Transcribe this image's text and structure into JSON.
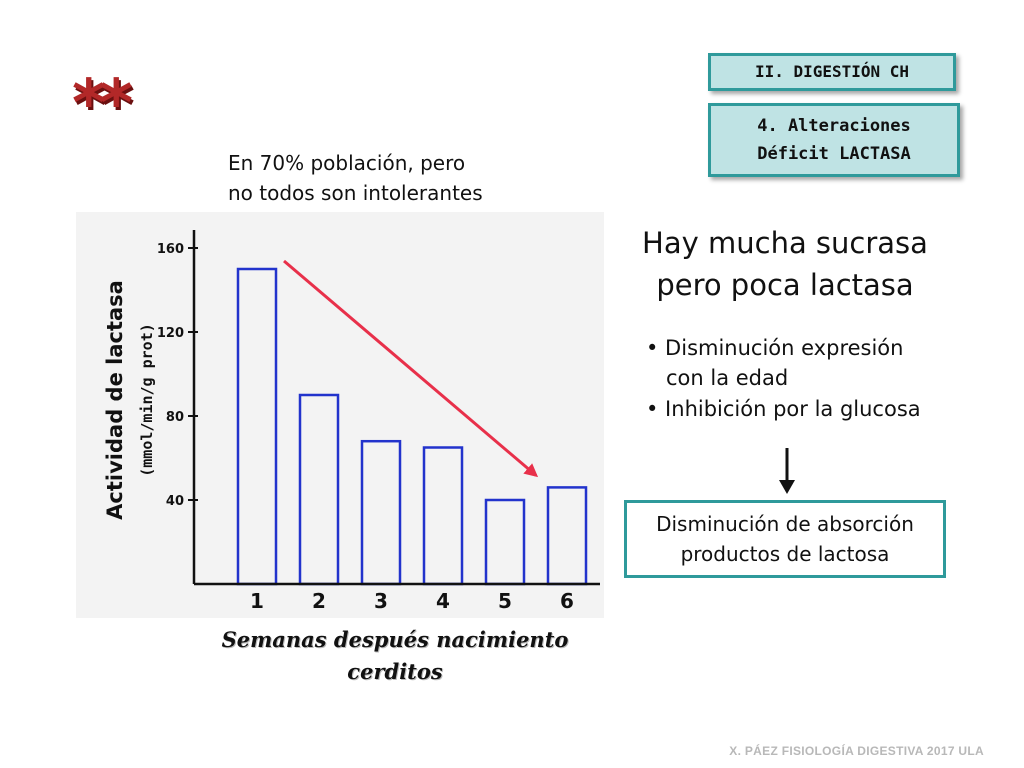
{
  "section_tag": "II. DIGESTIÓN CH",
  "topic_tag": {
    "line1": "4. Alteraciones",
    "line2": "Déficit LACTASA"
  },
  "stars": "**",
  "note": {
    "line1": "En 70% población, pero",
    "line2": "no todos son intolerantes"
  },
  "headline": {
    "line1": "Hay mucha sucrasa",
    "line2": "pero poca lactasa"
  },
  "bullets": [
    {
      "line1": "• Disminución expresión",
      "line2": "con la edad"
    },
    {
      "line1": "• Inhibición por la glucosa"
    }
  ],
  "result": {
    "line1": "Disminución de absorción",
    "line2": "productos de lactosa"
  },
  "footer": "X. PÁEZ   FISIOLOGÍA DIGESTIVA 2017  ULA",
  "colors": {
    "accent_teal": "#2f9a9b",
    "tag_fill": "#bfe3e4",
    "bar_stroke": "#2233cc",
    "trend_arrow": "#e8304a"
  },
  "chart_data": {
    "type": "bar",
    "categories": [
      "1",
      "2",
      "3",
      "4",
      "5",
      "6"
    ],
    "values": [
      150,
      90,
      68,
      65,
      40,
      46
    ],
    "ylabel": "Actividad de lactasa",
    "ylabel_units": "(mmol/min/g prot)",
    "xlabel": {
      "line1": "Semanas después nacimiento",
      "line2": "cerditos"
    },
    "yticks": [
      40,
      80,
      120,
      160
    ],
    "ylim": [
      0,
      160
    ],
    "annotation": "downward trend arrow"
  }
}
